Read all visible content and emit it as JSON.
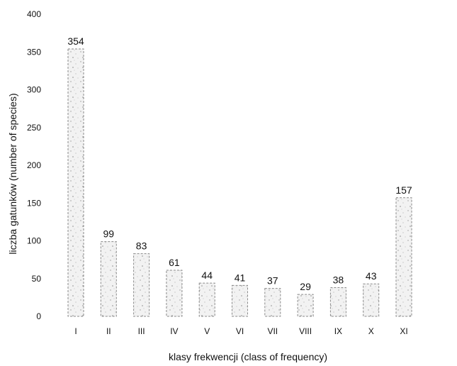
{
  "chart_data": {
    "type": "bar",
    "categories": [
      "I",
      "II",
      "III",
      "IV",
      "V",
      "VI",
      "VII",
      "VIII",
      "IX",
      "X",
      "XI"
    ],
    "values": [
      354,
      99,
      83,
      61,
      44,
      41,
      37,
      29,
      38,
      43,
      157
    ],
    "data_labels": [
      "354",
      "99",
      "83",
      "61",
      "44",
      "41",
      "37",
      "29",
      "38",
      "43",
      "157"
    ],
    "xlabel": "klasy frekwencji (class of frequency)",
    "ylabel": "liczba gatunków (number of species)",
    "ylim": [
      0,
      400
    ],
    "yticks": [
      0,
      50,
      100,
      150,
      200,
      250,
      300,
      350,
      400
    ],
    "ytick_labels": [
      "0",
      "50",
      "100",
      "150",
      "200",
      "250",
      "300",
      "350",
      "400"
    ],
    "grid": false,
    "legend": "none",
    "colors": {
      "bar_border": "#8a8a8a",
      "bar_fill": "#f2f2f2",
      "speckle": "#9a9a9a",
      "text": "#111111"
    }
  }
}
